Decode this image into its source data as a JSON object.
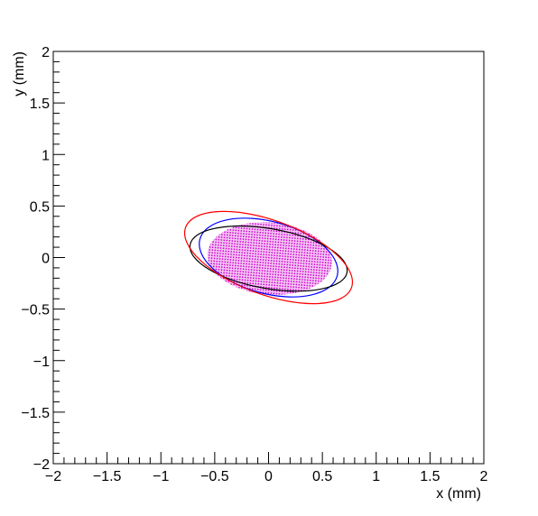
{
  "chart_data": {
    "type": "ellipse",
    "xlabel": "x (mm)",
    "ylabel": "y (mm)",
    "xlim": [
      -2,
      2
    ],
    "ylim": [
      -2,
      2
    ],
    "xticks": [
      {
        "value": -2,
        "label": "−2"
      },
      {
        "value": -1.5,
        "label": "−1.5"
      },
      {
        "value": -1,
        "label": "−1"
      },
      {
        "value": -0.5,
        "label": "−0.5"
      },
      0,
      0.5,
      1,
      1.5,
      2
    ],
    "yticks": [
      {
        "value": -2,
        "label": "−2"
      },
      {
        "value": -1.5,
        "label": "−1.5"
      },
      {
        "value": -1,
        "label": "−1"
      },
      {
        "value": -0.5,
        "label": "−0.5"
      },
      0,
      0.5,
      1,
      1.5,
      2
    ],
    "series": [
      {
        "color": "#cc00cc",
        "filled": true,
        "cx": 0.01,
        "cy": -0.01,
        "rx": 0.58,
        "ry": 0.35,
        "angle": -5
      },
      {
        "color": "#0000ff",
        "filled": false,
        "cx": 0,
        "cy": 0,
        "rx": 0.66,
        "ry": 0.35,
        "angle": -15
      },
      {
        "color": "#000000",
        "filled": false,
        "cx": 0,
        "cy": -0.01,
        "rx": 0.74,
        "ry": 0.29,
        "angle": -10
      },
      {
        "color": "#ff0000",
        "filled": false,
        "cx": 0,
        "cy": 0,
        "rx": 0.82,
        "ry": 0.36,
        "angle": -20
      }
    ]
  }
}
